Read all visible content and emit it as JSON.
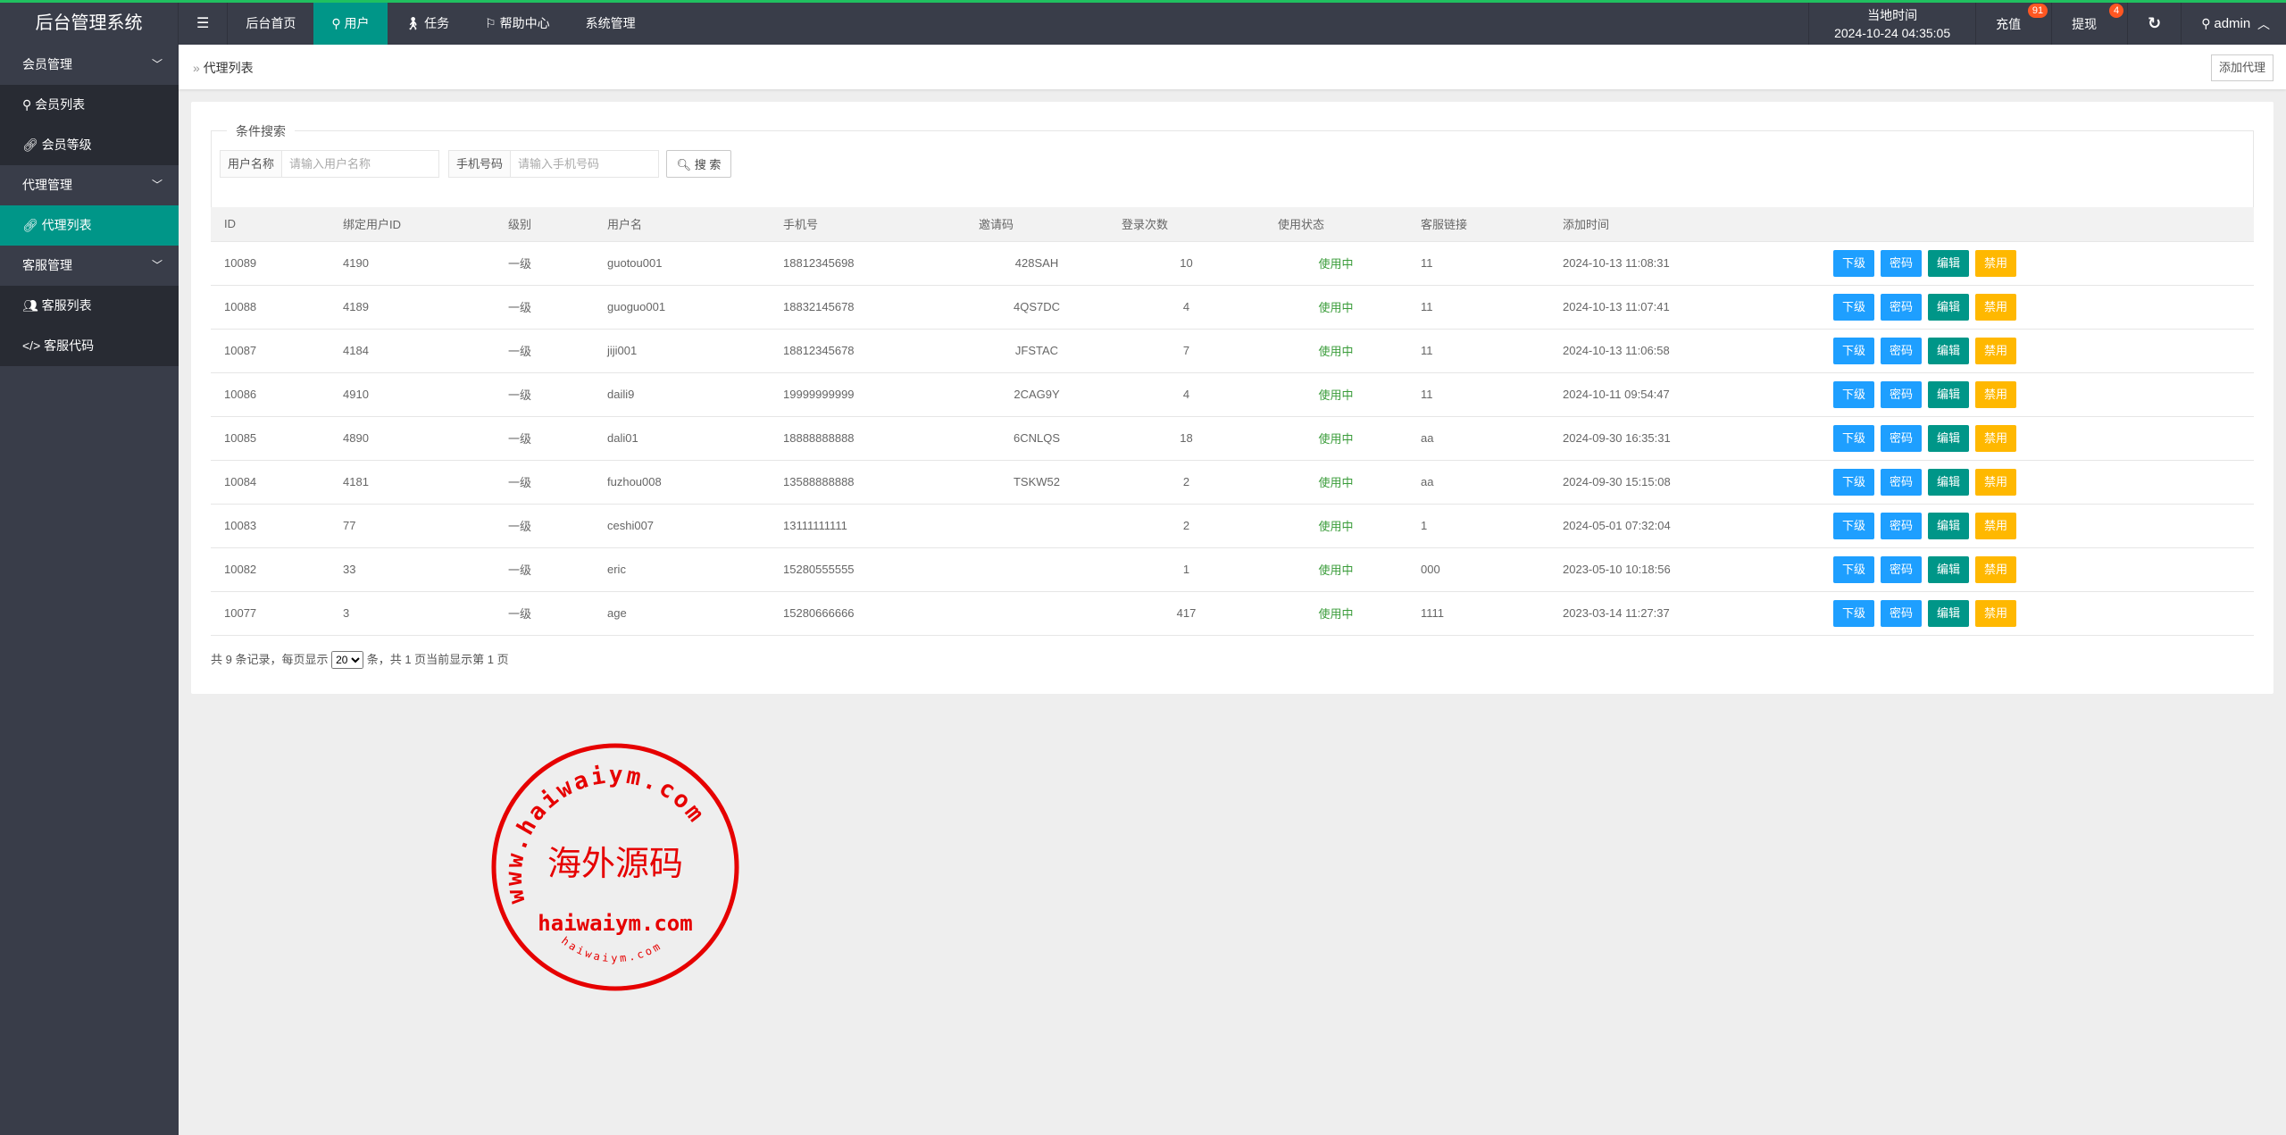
{
  "app": {
    "title": "后台管理系统"
  },
  "nav": {
    "menu_icon": "hamburger-icon",
    "items": [
      {
        "label": "后台首页"
      },
      {
        "label": "用户",
        "icon": "user-icon",
        "active": true
      },
      {
        "label": "任务",
        "icon": "walk-icon"
      },
      {
        "label": "帮助中心",
        "icon": "flag-icon"
      },
      {
        "label": "系统管理"
      }
    ]
  },
  "header_right": {
    "time_label": "当地时间",
    "time_value": "2024-10-24 04:35:05",
    "recharge": "充值",
    "recharge_badge": "91",
    "withdraw": "提现",
    "withdraw_badge": "4",
    "refresh_icon": "refresh-icon",
    "user": "admin"
  },
  "sidebar": {
    "groups": [
      {
        "label": "会员管理",
        "items": [
          {
            "label": "会员列表",
            "icon": "user-icon"
          },
          {
            "label": "会员等级",
            "icon": "link-icon"
          }
        ]
      },
      {
        "label": "代理管理",
        "items": [
          {
            "label": "代理列表",
            "icon": "link-icon",
            "active": true
          }
        ]
      },
      {
        "label": "客服管理",
        "items": [
          {
            "label": "客服列表",
            "icon": "users-icon"
          },
          {
            "label": "客服代码",
            "icon": "code-icon"
          }
        ]
      }
    ]
  },
  "breadcrumb": {
    "current": "代理列表",
    "add_button": "添加代理"
  },
  "search": {
    "legend": "条件搜索",
    "username_label": "用户名称",
    "username_placeholder": "请输入用户名称",
    "phone_label": "手机号码",
    "phone_placeholder": "请输入手机号码",
    "search_button": "搜 索"
  },
  "table": {
    "headers": [
      "ID",
      "绑定用户ID",
      "级别",
      "用户名",
      "手机号",
      "邀请码",
      "登录次数",
      "使用状态",
      "客服链接",
      "添加时间"
    ],
    "actions": [
      "下级",
      "密码",
      "编辑",
      "禁用"
    ],
    "rows": [
      [
        "10089",
        "4190",
        "一级",
        "guotou001",
        "18812345698",
        "428SAH",
        "10",
        "使用中",
        "11",
        "2024-10-13 11:08:31"
      ],
      [
        "10088",
        "4189",
        "一级",
        "guoguo001",
        "18832145678",
        "4QS7DC",
        "4",
        "使用中",
        "11",
        "2024-10-13 11:07:41"
      ],
      [
        "10087",
        "4184",
        "一级",
        "jiji001",
        "18812345678",
        "JFSTAC",
        "7",
        "使用中",
        "11",
        "2024-10-13 11:06:58"
      ],
      [
        "10086",
        "4910",
        "一级",
        "daili9",
        "19999999999",
        "2CAG9Y",
        "4",
        "使用中",
        "11",
        "2024-10-11 09:54:47"
      ],
      [
        "10085",
        "4890",
        "一级",
        "dali01",
        "18888888888",
        "6CNLQS",
        "18",
        "使用中",
        "aa",
        "2024-09-30 16:35:31"
      ],
      [
        "10084",
        "4181",
        "一级",
        "fuzhou008",
        "13588888888",
        "TSKW52",
        "2",
        "使用中",
        "aa",
        "2024-09-30 15:15:08"
      ],
      [
        "10083",
        "77",
        "一级",
        "ceshi007",
        "13111111111",
        "",
        "2",
        "使用中",
        "1",
        "2024-05-01 07:32:04"
      ],
      [
        "10082",
        "33",
        "一级",
        "eric",
        "15280555555",
        "",
        "1",
        "使用中",
        "000",
        "2023-05-10 10:18:56"
      ],
      [
        "10077",
        "3",
        "一级",
        "age",
        "15280666666",
        "",
        "417",
        "使用中",
        "1111",
        "2023-03-14 11:27:37"
      ]
    ]
  },
  "pagination": {
    "prefix": "共 9 条记录，每页显示",
    "page_size": "20",
    "suffix": "条，共 1 页当前显示第 1 页"
  },
  "watermark": {
    "text_top": "www.haiwaiym.com",
    "text_center": "海外源码",
    "text_bottom": "haiwaiym.com",
    "text_small": "haiwaiym.com"
  },
  "colors": {
    "header": "#393d49",
    "accent": "#009688",
    "blue": "#1e9fff",
    "yellow": "#ffb800",
    "status": "#3a9c3a",
    "stamp": "#e60000"
  }
}
